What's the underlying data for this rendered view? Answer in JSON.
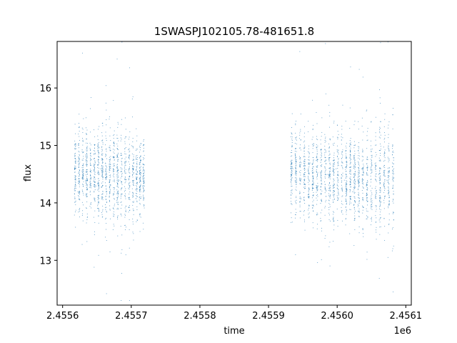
{
  "chart_data": {
    "type": "scatter",
    "title": "1SWASPJ102105.78-481651.8",
    "xlabel": "time",
    "ylabel": "flux",
    "x_offset_label": "1e6",
    "xlim": [
      2455592,
      2456108
    ],
    "ylim": [
      12.22,
      16.81
    ],
    "x_ticks": [
      2455600,
      2455700,
      2455800,
      2455900,
      2456000,
      2456100
    ],
    "x_tick_labels": [
      "2.4556",
      "2.4557",
      "2.4558",
      "2.4559",
      "2.4560",
      "2.4561"
    ],
    "y_ticks": [
      13,
      14,
      15,
      16
    ],
    "y_tick_labels": [
      "13",
      "14",
      "15",
      "16"
    ],
    "grid": false,
    "legend": "none",
    "marker_color": "#1f77b4",
    "series": [
      {
        "segments": [
          {
            "x_range": [
              2455615,
              2455660
            ],
            "mean": 14.5,
            "sd": 0.35
          },
          {
            "x_range": [
              2455660,
              2455705
            ],
            "mean": 14.45,
            "sd": 0.42
          },
          {
            "x_range": [
              2455705,
              2455720
            ],
            "mean": 14.45,
            "sd": 0.3
          },
          {
            "x_range": [
              2455930,
              2455955
            ],
            "mean": 14.55,
            "sd": 0.4
          },
          {
            "x_range": [
              2455955,
              2456040
            ],
            "mean": 14.45,
            "sd": 0.38
          },
          {
            "x_range": [
              2456040,
              2456084
            ],
            "mean": 14.4,
            "sd": 0.45
          }
        ],
        "values": [
          [
            2455617,
            14.6
          ],
          [
            2455622,
            14.2
          ],
          [
            2455628,
            14.9
          ],
          [
            2455633,
            14.4
          ],
          [
            2455640,
            14.7
          ],
          [
            2455648,
            14.3
          ],
          [
            2455655,
            14.6
          ],
          [
            2455662,
            14.5
          ],
          [
            2455668,
            14.2
          ],
          [
            2455675,
            14.8
          ],
          [
            2455683,
            14.4
          ],
          [
            2455690,
            14.6
          ],
          [
            2455697,
            14.1
          ],
          [
            2455700,
            15.0
          ],
          [
            2455708,
            14.5
          ],
          [
            2455716,
            14.3
          ],
          [
            2455935,
            14.6
          ],
          [
            2455945,
            14.4
          ],
          [
            2455960,
            14.7
          ],
          [
            2455972,
            14.3
          ],
          [
            2455985,
            14.5
          ],
          [
            2455998,
            14.6
          ],
          [
            2456010,
            14.4
          ],
          [
            2456022,
            14.2
          ],
          [
            2456035,
            14.6
          ],
          [
            2456048,
            14.3
          ],
          [
            2456060,
            14.5
          ],
          [
            2456072,
            14.4
          ],
          [
            2456082,
            14.6
          ]
        ]
      }
    ]
  }
}
